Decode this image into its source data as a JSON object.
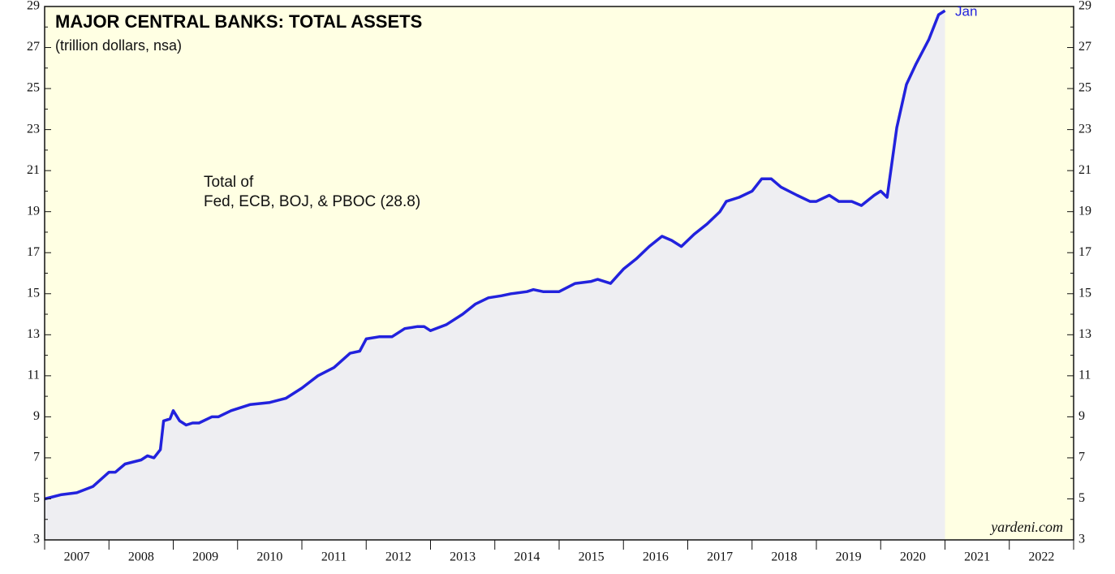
{
  "chart_data": {
    "type": "area",
    "title": "MAJOR CENTRAL BANKS: TOTAL ASSETS",
    "subtitle": "(trillion dollars, nsa)",
    "annotations": [
      "Total of",
      "Fed, ECB, BOJ, & PBOC (28.8)",
      "Jan",
      "yardeni.com"
    ],
    "series": [
      {
        "name": "Total of Fed, ECB, BOJ, & PBOC",
        "color": "#2222dd",
        "x": [
          2007.0,
          2007.25,
          2007.5,
          2007.75,
          2008.0,
          2008.1,
          2008.25,
          2008.5,
          2008.6,
          2008.7,
          2008.8,
          2008.85,
          2008.95,
          2009.0,
          2009.1,
          2009.2,
          2009.3,
          2009.4,
          2009.6,
          2009.7,
          2009.9,
          2010.2,
          2010.5,
          2010.75,
          2011.0,
          2011.25,
          2011.5,
          2011.75,
          2011.9,
          2012.0,
          2012.2,
          2012.4,
          2012.6,
          2012.8,
          2012.9,
          2013.0,
          2013.25,
          2013.5,
          2013.7,
          2013.9,
          2014.1,
          2014.25,
          2014.5,
          2014.6,
          2014.75,
          2015.0,
          2015.25,
          2015.5,
          2015.6,
          2015.8,
          2016.0,
          2016.2,
          2016.4,
          2016.6,
          2016.75,
          2016.9,
          2017.1,
          2017.3,
          2017.5,
          2017.6,
          2017.8,
          2018.0,
          2018.15,
          2018.3,
          2018.45,
          2018.7,
          2018.9,
          2019.0,
          2019.2,
          2019.35,
          2019.55,
          2019.7,
          2019.9,
          2020.0,
          2020.1,
          2020.25,
          2020.4,
          2020.55,
          2020.75,
          2020.9,
          2021.0
        ],
        "values": [
          5.0,
          5.2,
          5.3,
          5.6,
          6.3,
          6.3,
          6.7,
          6.9,
          7.1,
          7.0,
          7.4,
          8.8,
          8.9,
          9.3,
          8.8,
          8.6,
          8.7,
          8.7,
          9.0,
          9.0,
          9.3,
          9.6,
          9.7,
          9.9,
          10.4,
          11.0,
          11.4,
          12.1,
          12.2,
          12.8,
          12.9,
          12.9,
          13.3,
          13.4,
          13.4,
          13.2,
          13.5,
          14.0,
          14.5,
          14.8,
          14.9,
          15.0,
          15.1,
          15.2,
          15.1,
          15.1,
          15.5,
          15.6,
          15.7,
          15.5,
          16.2,
          16.7,
          17.3,
          17.8,
          17.6,
          17.3,
          17.9,
          18.4,
          19.0,
          19.5,
          19.7,
          20.0,
          20.6,
          20.6,
          20.2,
          19.8,
          19.5,
          19.5,
          19.8,
          19.5,
          19.5,
          19.3,
          19.8,
          20.0,
          19.7,
          23.1,
          25.2,
          26.2,
          27.4,
          28.6,
          28.8
        ]
      }
    ],
    "xlim": [
      2007,
      2023
    ],
    "xticks": [
      {
        "value": 2007.5,
        "label": "2007"
      },
      {
        "value": 2008.5,
        "label": "2008"
      },
      {
        "value": 2009.5,
        "label": "2009"
      },
      {
        "value": 2010.5,
        "label": "2010"
      },
      {
        "value": 2011.5,
        "label": "2011"
      },
      {
        "value": 2012.5,
        "label": "2012"
      },
      {
        "value": 2013.5,
        "label": "2013"
      },
      {
        "value": 2014.5,
        "label": "2014"
      },
      {
        "value": 2015.5,
        "label": "2015"
      },
      {
        "value": 2016.5,
        "label": "2016"
      },
      {
        "value": 2017.5,
        "label": "2017"
      },
      {
        "value": 2018.5,
        "label": "2018"
      },
      {
        "value": 2019.5,
        "label": "2019"
      },
      {
        "value": 2020.5,
        "label": "2020"
      },
      {
        "value": 2021.5,
        "label": "2021"
      },
      {
        "value": 2022.5,
        "label": "2022"
      }
    ],
    "ylim": [
      3,
      29
    ],
    "yticks": [
      3,
      5,
      7,
      9,
      11,
      13,
      15,
      17,
      19,
      21,
      23,
      25,
      27,
      29
    ],
    "background": "#ffffe3",
    "fill": "#eeeef2"
  }
}
